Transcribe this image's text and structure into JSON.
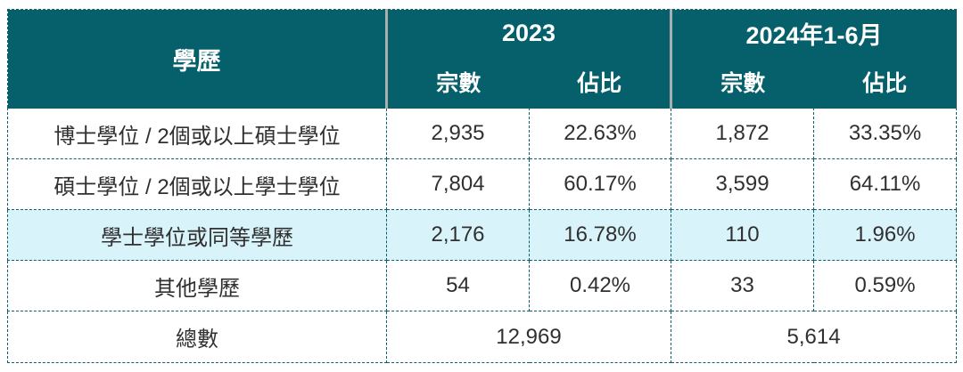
{
  "chart_data": {
    "type": "table",
    "title": "",
    "header": {
      "education_col": "學歷",
      "groups": [
        {
          "label": "2023",
          "sub": [
            "宗數",
            "佔比"
          ]
        },
        {
          "label": "2024年1-6月",
          "sub": [
            "宗數",
            "佔比"
          ]
        }
      ]
    },
    "rows": [
      {
        "label": "博士學位 / 2個或以上碩士學位",
        "values": [
          "2,935",
          "22.63%",
          "1,872",
          "33.35%"
        ],
        "highlight": false
      },
      {
        "label": "碩士學位 / 2個或以上學士學位",
        "values": [
          "7,804",
          "60.17%",
          "3,599",
          "64.11%"
        ],
        "highlight": false
      },
      {
        "label": "學士學位或同等學歷",
        "values": [
          "2,176",
          "16.78%",
          "110",
          "1.96%"
        ],
        "highlight": true
      },
      {
        "label": "其他學歷",
        "values": [
          "54",
          "0.42%",
          "33",
          "0.59%"
        ],
        "highlight": false
      }
    ],
    "total": {
      "label": "總數",
      "values": [
        "12,969",
        "5,614"
      ]
    }
  },
  "colors": {
    "header_bg": "#05606c",
    "header_text": "#ffffff",
    "highlight_bg": "#d8f3f9",
    "dashed_border": "#0d5f6e",
    "header_divider": "#a9afaf",
    "body_text": "#303030"
  }
}
